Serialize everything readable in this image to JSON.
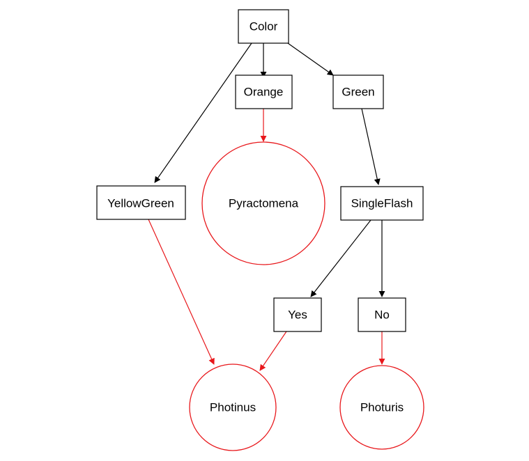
{
  "diagram": {
    "type": "decision-tree",
    "colors": {
      "decision": "#000000",
      "leaf": "#e8171b",
      "background": "#ffffff"
    },
    "nodes": {
      "color": "Color",
      "orange": "Orange",
      "green": "Green",
      "yellowgreen": "YellowGreen",
      "singleflash": "SingleFlash",
      "yes": "Yes",
      "no": "No",
      "pyractomena": "Pyractomena",
      "photinus": "Photinus",
      "photuris": "Photuris"
    },
    "edges": [
      {
        "from": "Color",
        "to": "YellowGreen",
        "kind": "decision"
      },
      {
        "from": "Color",
        "to": "Orange",
        "kind": "decision"
      },
      {
        "from": "Color",
        "to": "Green",
        "kind": "decision"
      },
      {
        "from": "Orange",
        "to": "Pyractomena",
        "kind": "leaf"
      },
      {
        "from": "Green",
        "to": "SingleFlash",
        "kind": "decision"
      },
      {
        "from": "YellowGreen",
        "to": "Photinus",
        "kind": "leaf"
      },
      {
        "from": "SingleFlash",
        "to": "Yes",
        "kind": "decision"
      },
      {
        "from": "SingleFlash",
        "to": "No",
        "kind": "decision"
      },
      {
        "from": "Yes",
        "to": "Photinus",
        "kind": "leaf"
      },
      {
        "from": "No",
        "to": "Photuris",
        "kind": "leaf"
      }
    ]
  }
}
